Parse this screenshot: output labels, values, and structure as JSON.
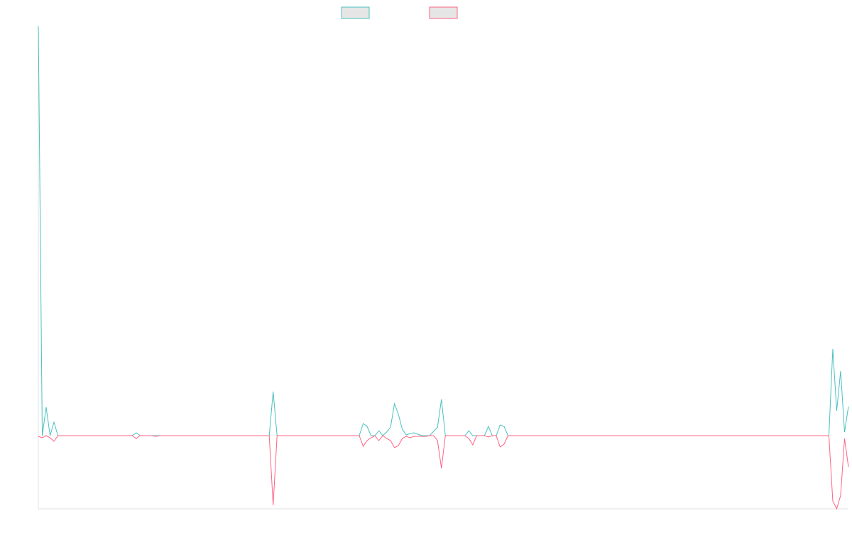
{
  "chart_data": {
    "type": "line",
    "categories": [
      null,
      null,
      null,
      null,
      null,
      null,
      null,
      null,
      null,
      null,
      null,
      null,
      null,
      null,
      null,
      null,
      null,
      null,
      null,
      null,
      null,
      null,
      null,
      null,
      null,
      null,
      null,
      null,
      null,
      null,
      null,
      null,
      null,
      null,
      null,
      null,
      null,
      null,
      null,
      null,
      null,
      null,
      null,
      null,
      null,
      null,
      null,
      null,
      null,
      null,
      null,
      null,
      null,
      null,
      null,
      null,
      null,
      null,
      null,
      null,
      null,
      null,
      null,
      null,
      null,
      null,
      null,
      null,
      null,
      null,
      null,
      null,
      null,
      null,
      null,
      null,
      null,
      null,
      null,
      null,
      null,
      null,
      null,
      null,
      null,
      null,
      null,
      null,
      null,
      null,
      null,
      null,
      null,
      null,
      null,
      null,
      null,
      null,
      null,
      null,
      null,
      null,
      null,
      null,
      null,
      null,
      null,
      null,
      null,
      null,
      null,
      null,
      null,
      null,
      null,
      null,
      null,
      null,
      null,
      null,
      null,
      null,
      null,
      null,
      null,
      null,
      null,
      null,
      null,
      null,
      null,
      null,
      null,
      null,
      null,
      null,
      null,
      null,
      null,
      null,
      null,
      null,
      null,
      null,
      null,
      null,
      null,
      null,
      null,
      null,
      null,
      null,
      null,
      null,
      null,
      null,
      null,
      null,
      null,
      null,
      null,
      null,
      null,
      null,
      null,
      null,
      null,
      null,
      null,
      null,
      null,
      null,
      null,
      null,
      null,
      null,
      null,
      null,
      null,
      null,
      null,
      null,
      null,
      null,
      null,
      null,
      null,
      null,
      null,
      null,
      null,
      null,
      null,
      null,
      null,
      null,
      null,
      null,
      null,
      null,
      null,
      null,
      null,
      null,
      null,
      null,
      null,
      null
    ],
    "series": [
      {
        "color": "#4bc0c0",
        "values": [
          576,
          0,
          40,
          0,
          19,
          0,
          0,
          0,
          0,
          0,
          0,
          0,
          0,
          0,
          0,
          0,
          0,
          0,
          0,
          0,
          0,
          0,
          0,
          0,
          0,
          4,
          0,
          0,
          0,
          0,
          0,
          0,
          0,
          0,
          0,
          0,
          0,
          0,
          0,
          0,
          0,
          0,
          0,
          0,
          0,
          0,
          0,
          0,
          0,
          0,
          0,
          0,
          0,
          0,
          0,
          0,
          0,
          0,
          0,
          0,
          62,
          0,
          0,
          0,
          0,
          0,
          0,
          0,
          0,
          0,
          0,
          0,
          0,
          0,
          0,
          0,
          0,
          0,
          0,
          0,
          0,
          0,
          0,
          17,
          13,
          0,
          0,
          7,
          0,
          5,
          12,
          45,
          30,
          9,
          1,
          3,
          4,
          2,
          0,
          0,
          0,
          6,
          12,
          51,
          0,
          0,
          0,
          0,
          0,
          0,
          7,
          0,
          0,
          0,
          0,
          13,
          0,
          0,
          15,
          13,
          0,
          0,
          0,
          0,
          0,
          0,
          0,
          0,
          0,
          0,
          0,
          0,
          0,
          0,
          0,
          0,
          0,
          0,
          0,
          0,
          0,
          0,
          0,
          0,
          0,
          0,
          0,
          0,
          0,
          0,
          0,
          0,
          0,
          0,
          0,
          0,
          0,
          0,
          0,
          0,
          0,
          0,
          0,
          0,
          0,
          0,
          0,
          0,
          0,
          0,
          0,
          0,
          0,
          0,
          0,
          0,
          0,
          0,
          0,
          0,
          0,
          0,
          0,
          0,
          0,
          0,
          0,
          0,
          0,
          0,
          0,
          0,
          0,
          0,
          0,
          0,
          0,
          0,
          0,
          0,
          0,
          0,
          0,
          122,
          35,
          91,
          5,
          41
        ]
      },
      {
        "color": "#ff6384",
        "values": [
          -1,
          -3,
          0,
          -3,
          -8,
          0,
          0,
          0,
          0,
          0,
          0,
          0,
          0,
          0,
          0,
          0,
          0,
          0,
          0,
          0,
          0,
          0,
          0,
          0,
          0,
          -4,
          0,
          0,
          0,
          0,
          -1,
          0,
          0,
          0,
          0,
          0,
          0,
          0,
          0,
          0,
          0,
          0,
          0,
          0,
          0,
          0,
          0,
          0,
          0,
          0,
          0,
          0,
          0,
          0,
          0,
          0,
          0,
          0,
          0,
          0,
          -98,
          0,
          0,
          0,
          0,
          0,
          0,
          0,
          0,
          0,
          0,
          0,
          0,
          0,
          0,
          0,
          0,
          0,
          0,
          0,
          0,
          0,
          0,
          -15,
          -7,
          -3,
          0,
          -7,
          0,
          -4,
          -7,
          -17,
          -14,
          -4,
          -1,
          -3,
          -1,
          -1,
          -1,
          -1,
          0,
          0,
          -7,
          -46,
          0,
          0,
          0,
          0,
          0,
          0,
          -4,
          -13,
          0,
          0,
          0,
          -2,
          0,
          0,
          -16,
          -12,
          0,
          0,
          0,
          0,
          0,
          0,
          0,
          0,
          0,
          0,
          0,
          0,
          0,
          0,
          0,
          0,
          0,
          0,
          0,
          0,
          0,
          0,
          0,
          0,
          0,
          0,
          0,
          0,
          0,
          0,
          0,
          0,
          0,
          0,
          0,
          0,
          0,
          0,
          0,
          0,
          0,
          0,
          0,
          0,
          0,
          0,
          0,
          0,
          0,
          0,
          0,
          0,
          0,
          0,
          0,
          0,
          0,
          0,
          0,
          0,
          0,
          0,
          0,
          0,
          0,
          0,
          0,
          0,
          0,
          0,
          0,
          0,
          0,
          0,
          0,
          0,
          0,
          0,
          0,
          0,
          0,
          0,
          0,
          -92,
          -103,
          -84,
          -4,
          -44
        ]
      }
    ],
    "ylim": [
      -103,
      576
    ],
    "grid": false
  }
}
